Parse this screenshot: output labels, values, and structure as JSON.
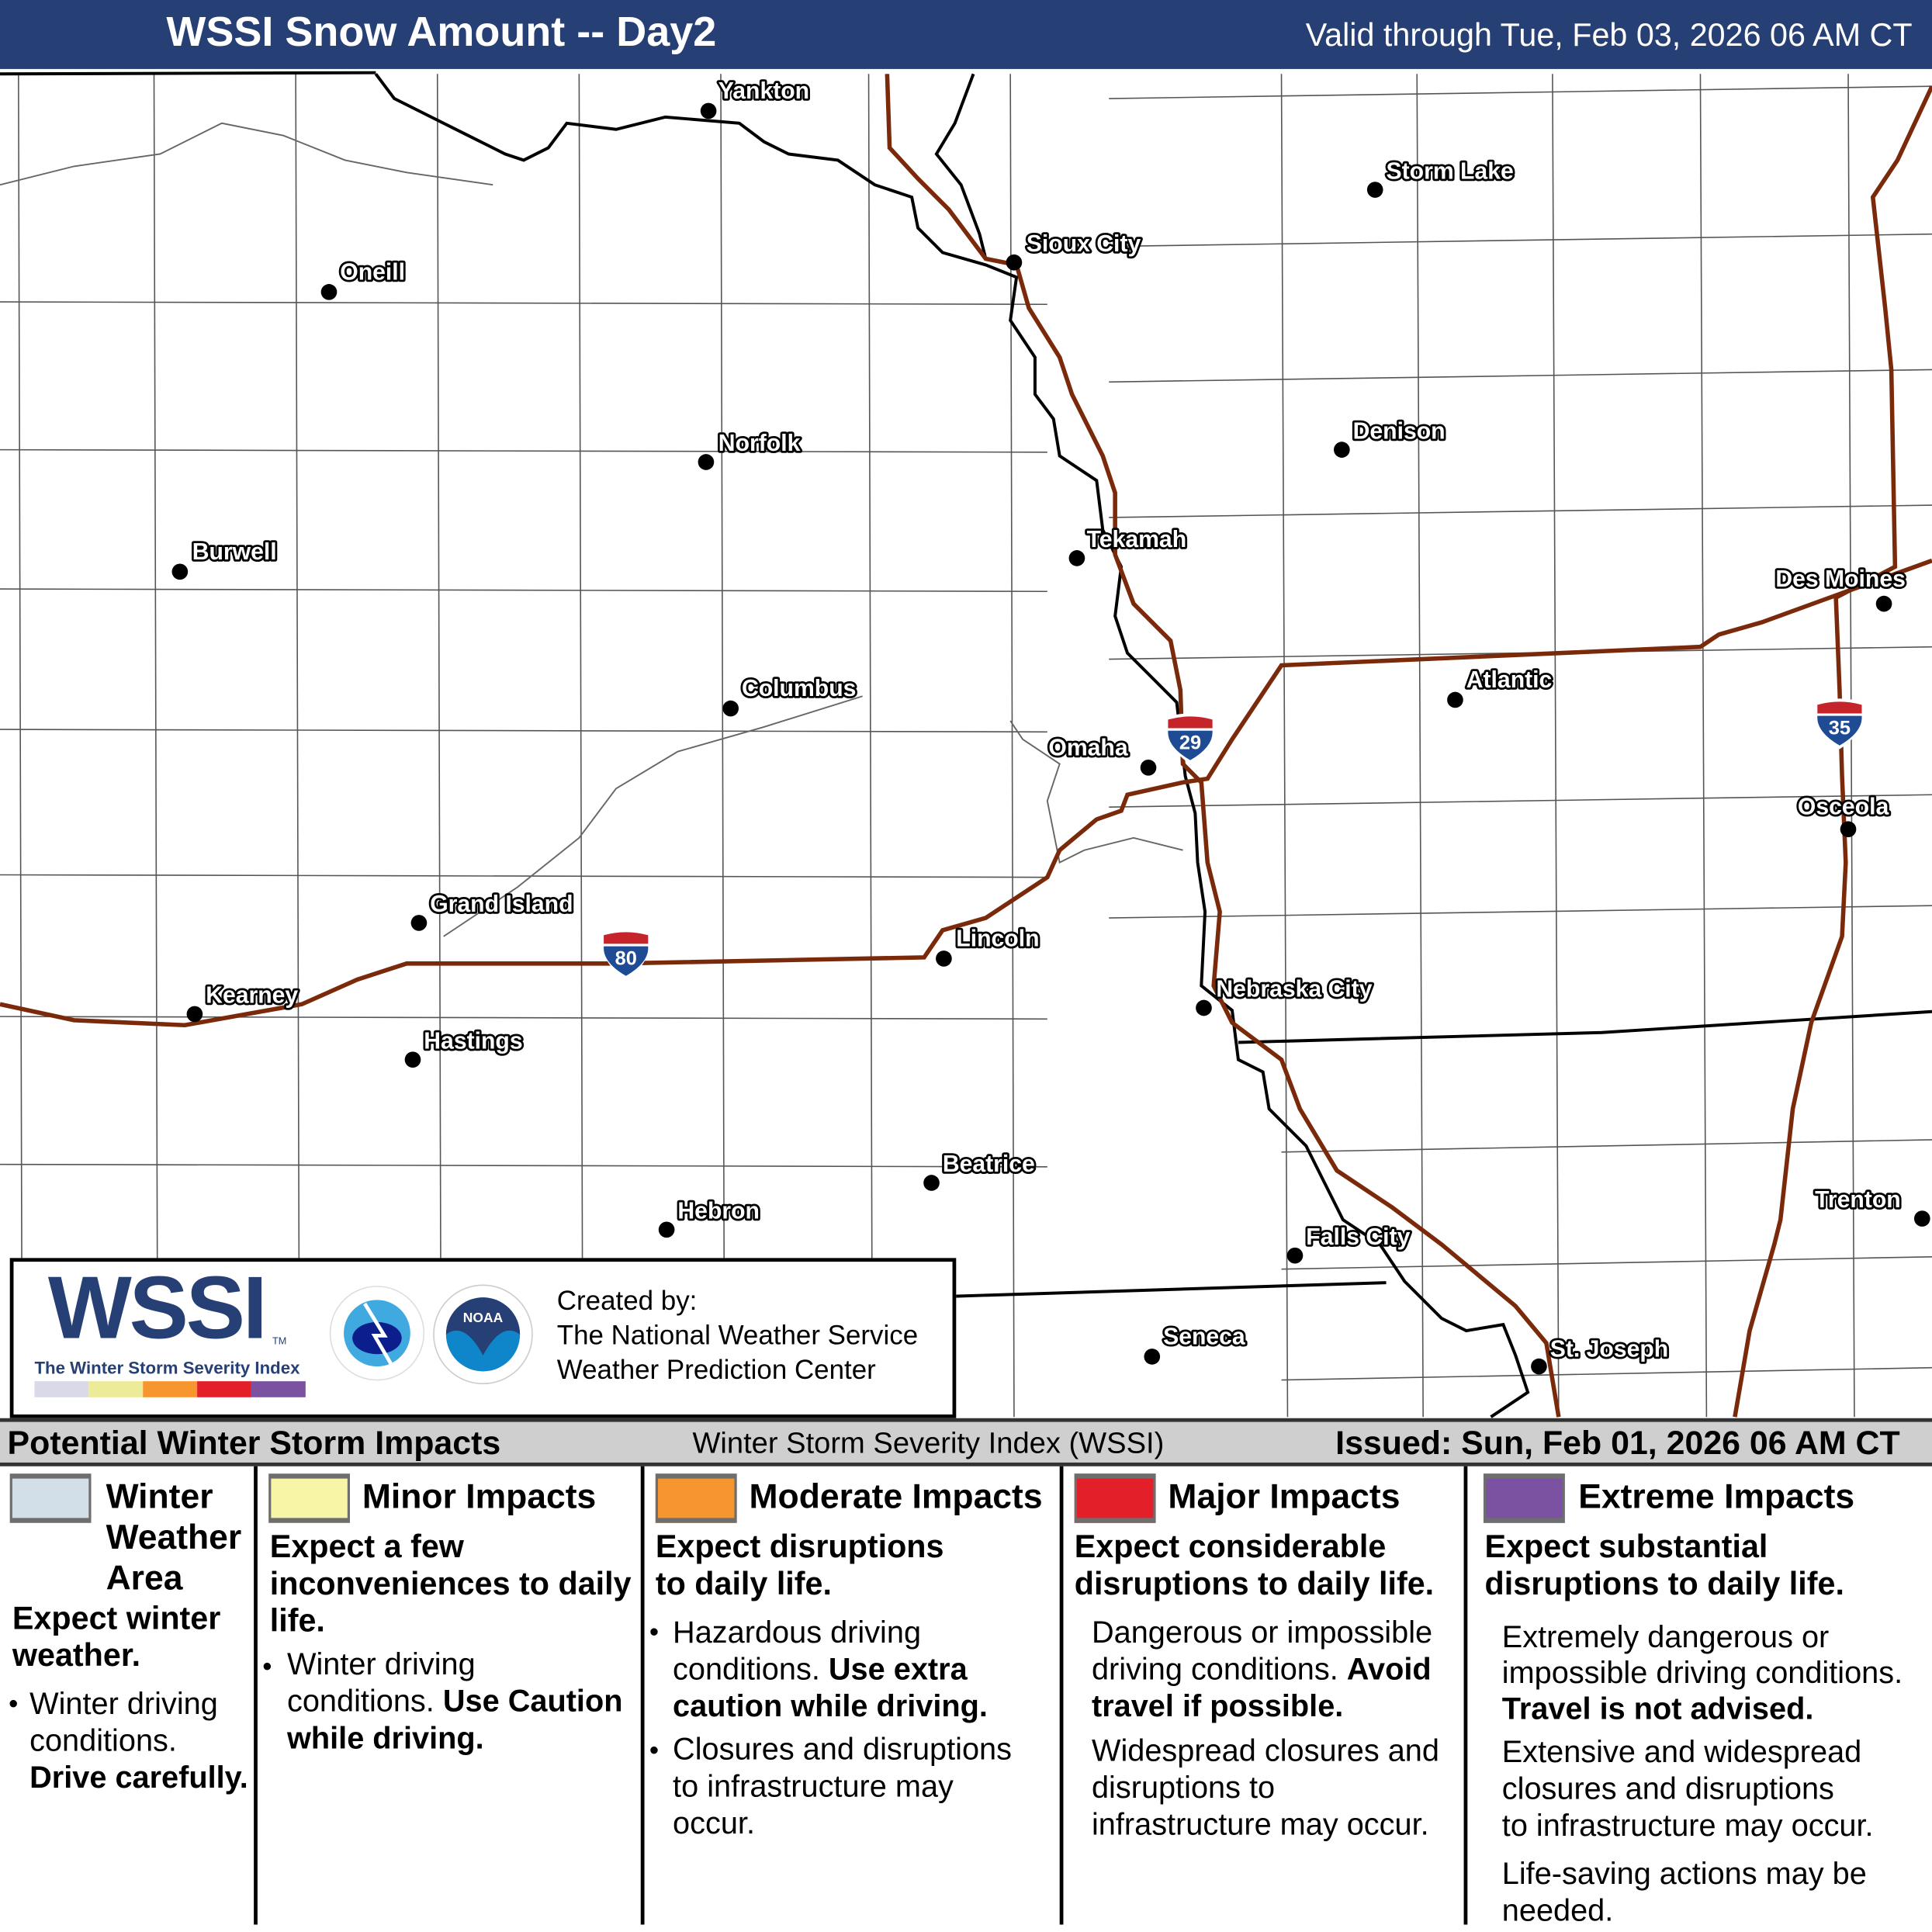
{
  "header": {
    "title": "WSSI Snow Amount -- Day2",
    "valid": "Valid through Tue, Feb 03, 2026 06 AM CT"
  },
  "cities": [
    "Yankton",
    "Storm Lake",
    "Sioux City",
    "Oneill",
    "Norfolk",
    "Denison",
    "Burwell",
    "Tekamah",
    "Des Moines",
    "Columbus",
    "Atlantic",
    "Omaha",
    "Osceola",
    "Grand Island",
    "Lincoln",
    "Kearney",
    "Nebraska City",
    "Hastings",
    "Beatrice",
    "Trenton",
    "Hebron",
    "Falls City",
    "Seneca",
    "St. Joseph"
  ],
  "shields": [
    "80",
    "29",
    "35"
  ],
  "colors": {
    "header": "#263f74",
    "road": "#7a2a0a",
    "winter": "#d3dfe8",
    "minor": "#f9f5a6",
    "moderate": "#f7952f",
    "major": "#e3202a",
    "extreme": "#7b52a1"
  },
  "logo": {
    "wssi": "WSSI",
    "tm": "TM",
    "subtitle": "The Winter Storm Severity Index",
    "created_by": "Created by:",
    "org1": "The National Weather Service",
    "org2": "Weather Prediction Center",
    "nws_text": "NATIONAL WEATHER SERVICE",
    "noaa_text": "NOAA"
  },
  "legend_header": {
    "left": "Potential Winter Storm Impacts",
    "center": "Winter Storm Severity Index (WSSI)",
    "issued": "Issued: Sun, Feb 01, 2026 06 AM CT"
  },
  "legend": [
    {
      "title1": "Winter",
      "title2": "Weather",
      "title3": "Area",
      "summary1": "Expect winter",
      "summary2": "weather.",
      "b1l1": "Winter driving",
      "b1l2": "conditions.",
      "b1bold": "Drive carefully."
    },
    {
      "title": "Minor Impacts",
      "summary1": "Expect a few",
      "summary2": "inconveniences to daily",
      "summary3": "life.",
      "b1l1": "Winter driving",
      "b1l2": "conditions. ",
      "b1bold1": "Use Caution",
      "b1bold2": "while driving."
    },
    {
      "title": "Moderate Impacts",
      "summary1": "Expect disruptions",
      "summary2": "to daily life.",
      "b1l1": "Hazardous driving",
      "b1l2": "conditions. ",
      "b1bold1": "Use extra",
      "b1bold2": "caution while driving.",
      "b2l1": "Closures and disruptions",
      "b2l2": "to infrastructure may",
      "b2l3": "occur."
    },
    {
      "title": "Major Impacts",
      "summary1": "Expect considerable",
      "summary2": "disruptions to daily life.",
      "p1l1": "Dangerous or impossible",
      "p1l2": "driving conditions. ",
      "p1bold1": "Avoid",
      "p1bold2": "travel if possible.",
      "p2l1": "Widespread closures and",
      "p2l2": "disruptions to",
      "p2l3": "infrastructure may occur."
    },
    {
      "title": "Extreme Impacts",
      "summary1": "Expect substantial",
      "summary2": "disruptions to daily life.",
      "p1l1": "Extremely dangerous or",
      "p1l2": "impossible driving conditions.",
      "p1bold": "Travel is not advised.",
      "p2l1": "Extensive and widespread",
      "p2l2": "closures and disruptions",
      "p2l3": "to infrastructure may occur.",
      "p3l1": "Life-saving actions may be",
      "p3l2": "needed."
    }
  ]
}
